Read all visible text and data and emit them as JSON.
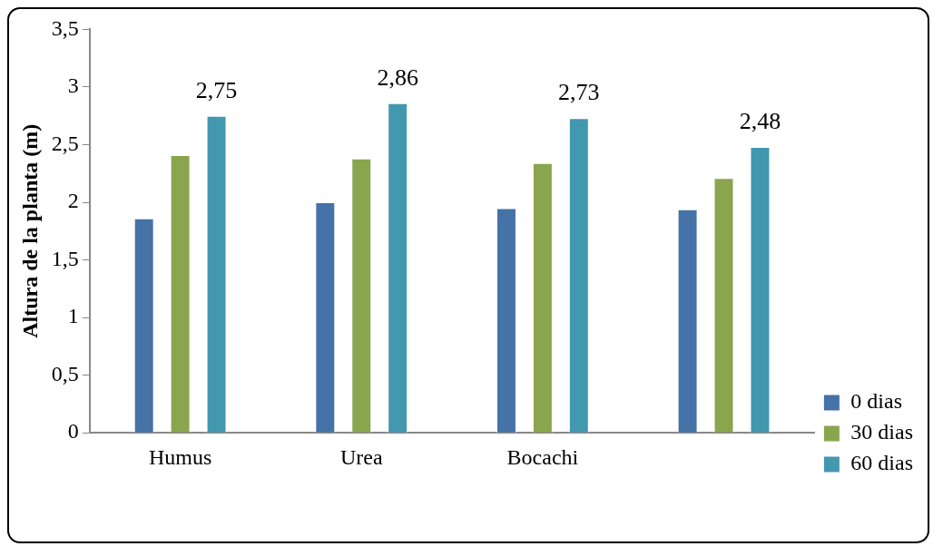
{
  "chart_data": {
    "type": "bar",
    "ylabel": "Altura de la planta (m)",
    "categories": [
      "Humus",
      "Urea",
      "Bocachi",
      null
    ],
    "series": [
      {
        "name": "0 dias",
        "color": "#4572a7",
        "values": [
          1.86,
          2.0,
          1.95,
          1.94
        ]
      },
      {
        "name": "30 dias",
        "color": "#89a54e",
        "values": [
          2.41,
          2.38,
          2.34,
          2.21
        ]
      },
      {
        "name": "60 dias",
        "color": "#4198af",
        "values": [
          2.75,
          2.86,
          2.73,
          2.48
        ],
        "value_labels": [
          "2,75",
          "2,86",
          "2,73",
          "2,48"
        ]
      }
    ],
    "ylim": [
      0,
      3.5
    ],
    "yticks": [
      0,
      {
        "value": 0.5,
        "label": "0,5"
      },
      1,
      {
        "value": 1.5,
        "label": "1,5"
      },
      2,
      {
        "value": 2.5,
        "label": "2,5"
      },
      3,
      {
        "value": 3.5,
        "label": "3,5"
      }
    ],
    "grid": false,
    "legend": "right"
  }
}
